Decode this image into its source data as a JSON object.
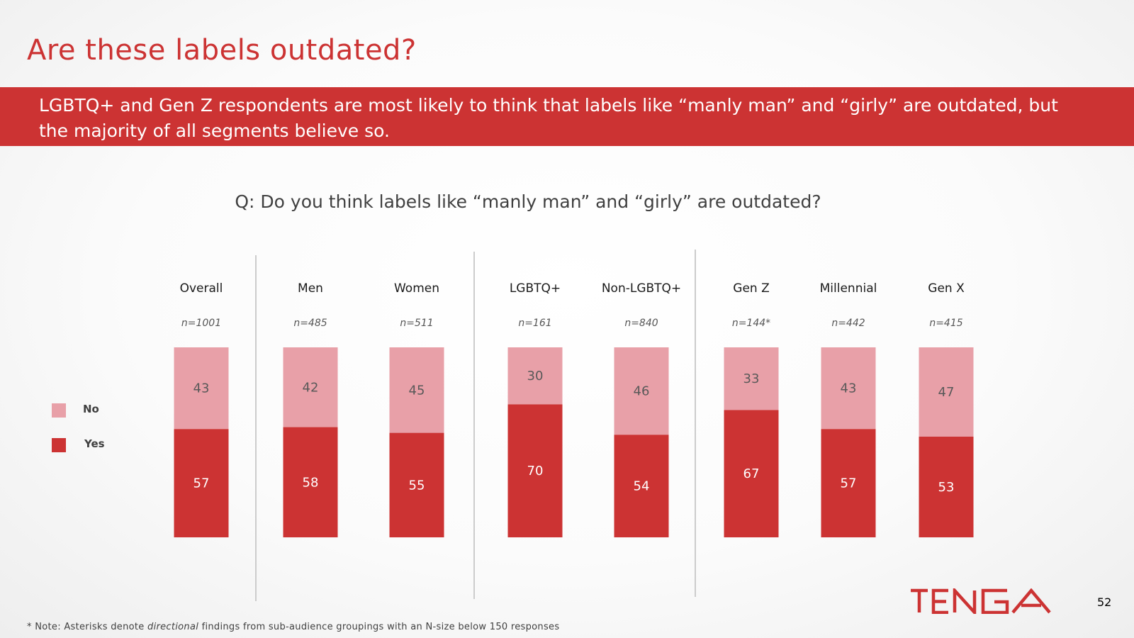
{
  "slide": {
    "title": "Are these labels outdated?",
    "banner": "LGBTQ+ and Gen Z respondents are most likely to think that labels like “manly man” and “girly” are outdated, but the majority of all segments believe so.",
    "question": "Q: Do you think labels like “manly man” and “girly” are outdated?",
    "footnote": {
      "prefix": "* Note: Asterisks denote ",
      "emphasis": "directional",
      "suffix": " findings from sub-audience groupings with an N-size below 150 responses"
    },
    "page_number": "52",
    "logo_text": "TENGA"
  },
  "legend": [
    {
      "label": "No",
      "color": "#e8a0a8"
    },
    {
      "label": "Yes",
      "color": "#cc3333"
    }
  ],
  "colors": {
    "yes": "#cc3333",
    "no": "#e8a0a8",
    "accent": "#cc3333"
  },
  "chart_data": {
    "type": "bar",
    "stacked": true,
    "categories": [
      "Overall",
      "Men",
      "Women",
      "LGBTQ+",
      "Non-LGBTQ+",
      "Gen Z",
      "Millennial",
      "Gen X"
    ],
    "sample_sizes": [
      "n=1001",
      "n=485",
      "n=511",
      "n=161",
      "n=840",
      "n=144*",
      "n=442",
      "n=415"
    ],
    "series": [
      {
        "name": "Yes",
        "values": [
          57,
          58,
          55,
          70,
          54,
          67,
          57,
          53
        ]
      },
      {
        "name": "No",
        "values": [
          43,
          42,
          45,
          30,
          46,
          33,
          43,
          47
        ]
      }
    ],
    "ylim": [
      0,
      100
    ],
    "grid": false,
    "legend_position": "left",
    "groups": [
      [
        "Overall"
      ],
      [
        "Men",
        "Women"
      ],
      [
        "LGBTQ+",
        "Non-LGBTQ+"
      ],
      [
        "Gen Z",
        "Millennial",
        "Gen X"
      ]
    ]
  }
}
